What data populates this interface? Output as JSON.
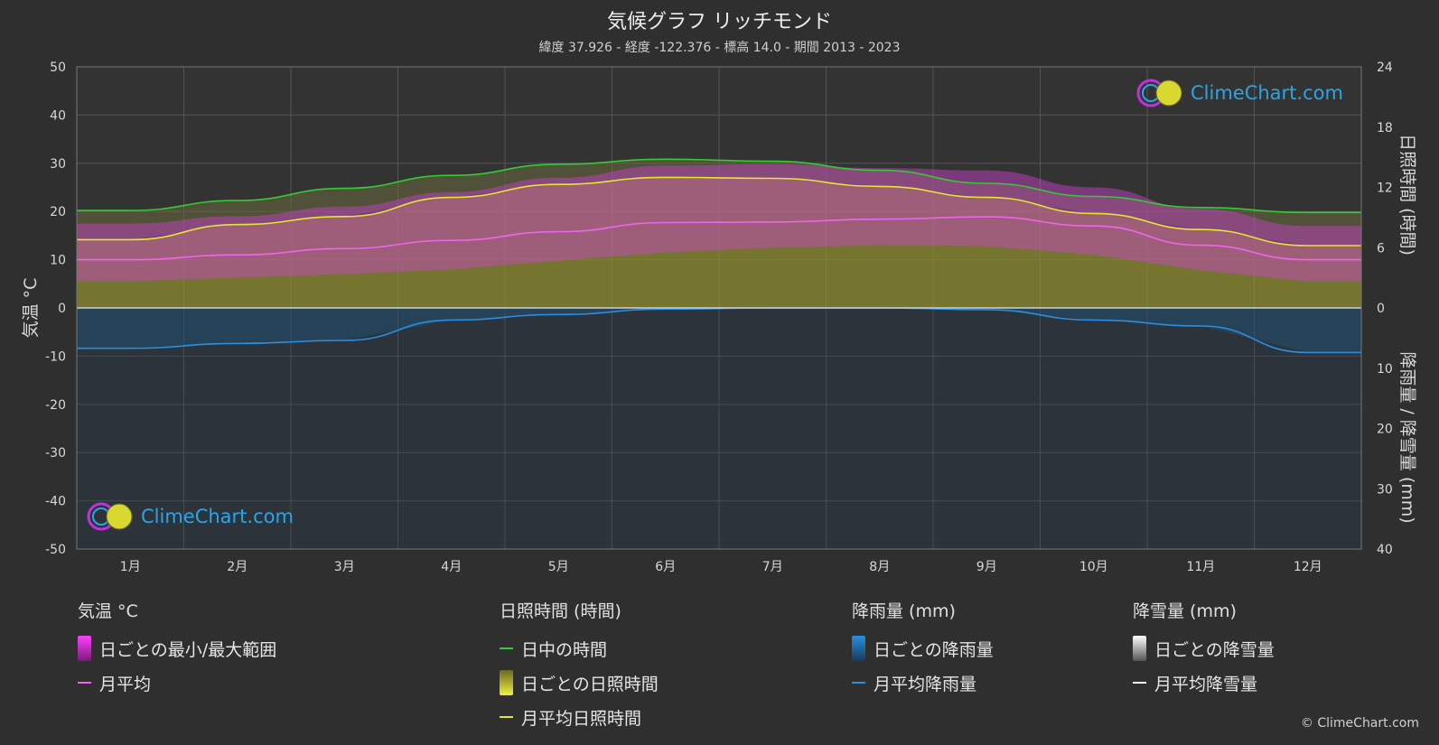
{
  "title": "気候グラフ リッチモンド",
  "subtitle": "緯度 37.926 - 経度 -122.376 - 標高 14.0 - 期間 2013 - 2023",
  "logo_text": "ClimeChart.com",
  "copyright": "© ClimeChart.com",
  "colors": {
    "background": "#2f2f2f",
    "daylight": "#33cc33",
    "sunshine_mean": "#e6e632",
    "temp_mean": "#ee66ee",
    "rain_mean": "#2a8fe0",
    "snow_mean": "#ffffff",
    "temp_range": "#d040d0",
    "sunshine_fill": "#8c8c30",
    "rain_fill": "#1f5f90"
  },
  "legend": {
    "temperature": {
      "header": "気温 °C",
      "items": [
        {
          "label": "日ごとの最小/最大範囲",
          "icon": "magenta-range-swatch"
        },
        {
          "label": "月平均",
          "icon": "pink-line-swatch"
        }
      ]
    },
    "sunshine": {
      "header": "日照時間 (時間)",
      "items": [
        {
          "label": "日中の時間",
          "icon": "green-line-swatch"
        },
        {
          "label": "日ごとの日照時間",
          "icon": "yellow-range-swatch"
        },
        {
          "label": "月平均日照時間",
          "icon": "yellow-line-swatch"
        }
      ]
    },
    "rain": {
      "header": "降雨量 (mm)",
      "items": [
        {
          "label": "日ごとの降雨量",
          "icon": "blue-range-swatch"
        },
        {
          "label": "月平均降雨量",
          "icon": "blue-line-swatch"
        }
      ]
    },
    "snow": {
      "header": "降雪量 (mm)",
      "items": [
        {
          "label": "日ごとの降雪量",
          "icon": "white-range-swatch"
        },
        {
          "label": "月平均降雪量",
          "icon": "white-line-swatch"
        }
      ]
    }
  },
  "chart_data": {
    "type": "line",
    "categories": [
      "1月",
      "2月",
      "3月",
      "4月",
      "5月",
      "6月",
      "7月",
      "8月",
      "9月",
      "10月",
      "11月",
      "12月"
    ],
    "y_left": {
      "label": "気温 °C",
      "range": [
        -50,
        50
      ],
      "ticks": [
        50,
        40,
        30,
        20,
        10,
        0,
        -10,
        -20,
        -30,
        -40,
        -50
      ]
    },
    "y_right_top": {
      "label": "日照時間 (時間)",
      "range": [
        0,
        24
      ],
      "ticks": [
        24,
        18,
        12,
        6,
        0
      ]
    },
    "y_right_bottom": {
      "label": "降雨量 / 降雪量 (mm)",
      "range": [
        0,
        40
      ],
      "ticks": [
        10,
        20,
        30,
        40
      ]
    },
    "grid": true,
    "series": [
      {
        "name": "日中の時間",
        "axis": "sunshine_hours",
        "values": [
          9.7,
          10.7,
          11.9,
          13.2,
          14.3,
          14.8,
          14.6,
          13.7,
          12.4,
          11.1,
          10.0,
          9.5
        ]
      },
      {
        "name": "月平均日照時間",
        "axis": "sunshine_hours",
        "values": [
          6.8,
          8.3,
          9.1,
          11.0,
          12.3,
          13.0,
          12.9,
          12.1,
          11.0,
          9.4,
          7.8,
          6.2
        ]
      },
      {
        "name": "月平均",
        "axis": "temperature_c",
        "values": [
          10.0,
          11.0,
          12.3,
          14.0,
          15.8,
          17.7,
          17.8,
          18.4,
          18.9,
          17.0,
          13.0,
          10.0
        ]
      },
      {
        "name": "月平均降雨量",
        "axis": "precipitation_mm",
        "values": [
          6.7,
          5.9,
          5.4,
          2.0,
          1.1,
          0.2,
          0.0,
          0.0,
          0.3,
          2.0,
          3.0,
          7.4
        ]
      },
      {
        "name": "月平均降雪量",
        "axis": "precipitation_mm",
        "values": [
          0,
          0,
          0,
          0,
          0,
          0,
          0,
          0,
          0,
          0,
          0,
          0
        ]
      }
    ],
    "temp_range": {
      "min": [
        5.5,
        6.3,
        7.0,
        8.0,
        9.8,
        11.5,
        12.5,
        13.0,
        12.8,
        11.0,
        7.8,
        5.5
      ],
      "max": [
        17.5,
        19.0,
        21.0,
        24.0,
        27.0,
        29.5,
        29.8,
        29.0,
        28.5,
        25.0,
        20.5,
        17.0
      ]
    }
  }
}
